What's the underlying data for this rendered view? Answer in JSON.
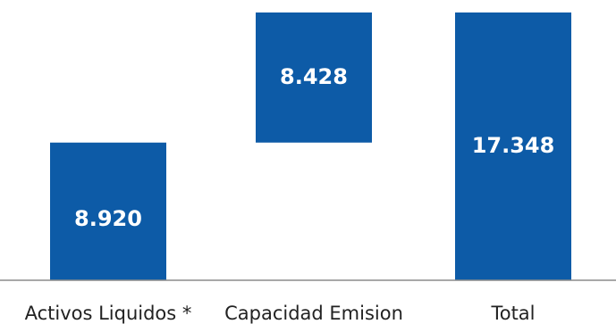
{
  "chart_data": {
    "type": "bar",
    "subtype": "waterfall",
    "categories": [
      "Activos Liquidos *",
      "Capacidad Emision",
      "Total"
    ],
    "bars": [
      {
        "category": "Activos Liquidos *",
        "base": 0,
        "value": 8920,
        "label": "8.920"
      },
      {
        "category": "Capacidad Emision",
        "base": 8920,
        "value": 8428,
        "label": "8.428"
      },
      {
        "category": "Total",
        "base": 0,
        "value": 17348,
        "label": "17.348"
      }
    ],
    "title": "",
    "xlabel": "",
    "ylabel": "",
    "ylim": [
      0,
      18000
    ],
    "grid": false,
    "legend": "none",
    "colors": {
      "bar": "#0d5ba7",
      "label": "#ffffff",
      "axis": "#8c8c8c",
      "category_text": "#222222",
      "background": "#ffffff"
    }
  }
}
